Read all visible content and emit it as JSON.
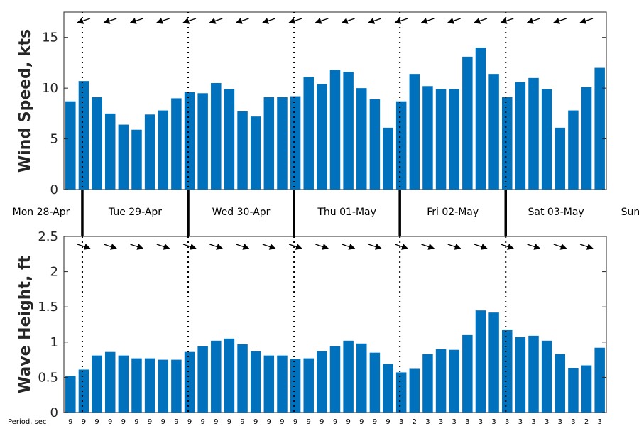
{
  "colors": {
    "bar": "#0072BD",
    "axis": "#262626",
    "arrow": "#000000"
  },
  "chart_data": [
    {
      "type": "bar",
      "panel": "wind",
      "title": "",
      "xlabel": "",
      "ylabel": "Wind Speed, kts",
      "ylim": [
        0,
        17.5
      ],
      "yticks": [
        "0",
        "5",
        "10",
        "15"
      ],
      "grid": false,
      "values": [
        8.7,
        10.7,
        9.1,
        7.5,
        6.4,
        5.9,
        7.4,
        7.8,
        9.0,
        9.6,
        9.5,
        10.5,
        9.9,
        7.7,
        7.2,
        9.1,
        9.1,
        9.2,
        11.1,
        10.4,
        11.8,
        11.6,
        10.0,
        8.9,
        6.1,
        8.7,
        11.4,
        10.2,
        9.9,
        9.9,
        13.1,
        14.0,
        11.4,
        9.1,
        10.6,
        11.0,
        9.9,
        6.1,
        7.8,
        10.1,
        12.0
      ],
      "direction": "wind direction arrows (pointing west)"
    },
    {
      "type": "bar",
      "panel": "wave",
      "title": "",
      "xlabel": "",
      "ylabel": "Wave Height, ft",
      "ylim": [
        0,
        2.5
      ],
      "yticks": [
        "0",
        "0.5",
        "1",
        "1.5",
        "2",
        "2.5"
      ],
      "grid": false,
      "values": [
        0.52,
        0.61,
        0.81,
        0.86,
        0.81,
        0.77,
        0.77,
        0.75,
        0.75,
        0.86,
        0.94,
        1.02,
        1.05,
        0.97,
        0.87,
        0.81,
        0.81,
        0.76,
        0.77,
        0.87,
        0.94,
        1.02,
        0.98,
        0.85,
        0.69,
        0.57,
        0.62,
        0.83,
        0.9,
        0.89,
        1.1,
        1.45,
        1.42,
        1.17,
        1.07,
        1.09,
        1.02,
        0.83,
        0.63,
        0.67,
        0.92
      ],
      "direction": "wave direction arrows (pointing east-southeast)"
    }
  ],
  "days": [
    "Mon 28-Apr",
    "Tue 29-Apr",
    "Wed 30-Apr",
    "Thu 01-May",
    "Fri 02-May",
    "Sat 03-May",
    "Sun"
  ],
  "period_label": "Period, sec",
  "periods": [
    "9",
    "9",
    "9",
    "9",
    "9",
    "9",
    "9",
    "9",
    "9",
    "9",
    "9",
    "9",
    "9",
    "9",
    "9",
    "9",
    "9",
    "9",
    "9",
    "9",
    "9",
    "9",
    "9",
    "9",
    "9",
    "3",
    "2",
    "3",
    "3",
    "3",
    "3",
    "3",
    "3",
    "3",
    "3",
    "3",
    "3",
    "3",
    "3",
    "2",
    "3"
  ]
}
